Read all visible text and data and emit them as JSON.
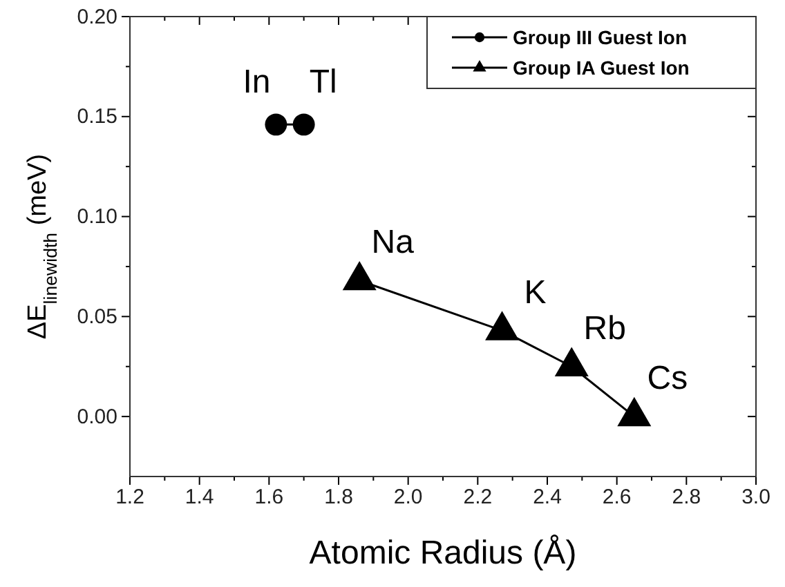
{
  "chart_data": {
    "type": "scatter",
    "xlabel": "Atomic Radius (Å)",
    "ylabel": "ΔE$_{linewidth}$ (meV)",
    "xlim": [
      1.2,
      3.0
    ],
    "xticks": [
      1.2,
      {
        "value": 1.3,
        "label": null
      },
      1.4,
      {
        "value": 1.5,
        "label": null
      },
      1.6,
      {
        "value": 1.7,
        "label": null
      },
      1.8,
      {
        "value": 1.9,
        "label": null
      },
      "2.0",
      {
        "value": 2.1,
        "label": null
      },
      2.2,
      {
        "value": 2.3,
        "label": null
      },
      2.4,
      {
        "value": 2.5,
        "label": null
      },
      2.6,
      {
        "value": 2.7,
        "label": null
      },
      2.8,
      {
        "value": 2.9,
        "label": null
      },
      {
        "value": 3.0,
        "label": "3.0"
      }
    ],
    "ylim": [
      -0.03,
      0.2
    ],
    "yticks": [
      {
        "value": 0,
        "label": "0.00"
      },
      {
        "value": 0.025,
        "label": null
      },
      {
        "value": 0.05,
        "label": "0.05"
      },
      {
        "value": 0.075,
        "label": null
      },
      {
        "value": 0.1,
        "label": "0.10"
      },
      {
        "value": 0.125,
        "label": null
      },
      {
        "value": 0.15,
        "label": "0.15"
      },
      {
        "value": 0.175,
        "label": null
      },
      {
        "value": 0.2,
        "label": "0.20"
      }
    ],
    "legend": "top right",
    "grid": false,
    "line_style": "solid",
    "series": [
      {
        "name": "Group III Guest Ion",
        "color": "#000000",
        "marker": "circle",
        "x": [
          1.62,
          1.7
        ],
        "values": [
          0.146,
          0.146
        ]
      },
      {
        "name": "Group IA Guest Ion",
        "color": "#000000",
        "marker": "triangle",
        "x": [
          1.86,
          2.27,
          2.47,
          2.65
        ],
        "values": [
          0.068,
          0.043,
          0.025,
          0.0
        ]
      }
    ],
    "annotations": [
      {
        "text": "In",
        "x": 1.62,
        "y": 0.146
      },
      {
        "text": "Tl",
        "x": 1.7,
        "y": 0.146
      },
      {
        "text": "Na",
        "x": 1.86,
        "y": 0.068
      },
      {
        "text": "K",
        "x": 2.27,
        "y": 0.043
      },
      {
        "text": "Rb",
        "x": 2.47,
        "y": 0.025
      },
      {
        "text": "Cs",
        "x": 2.65,
        "y": 0.0
      }
    ]
  }
}
